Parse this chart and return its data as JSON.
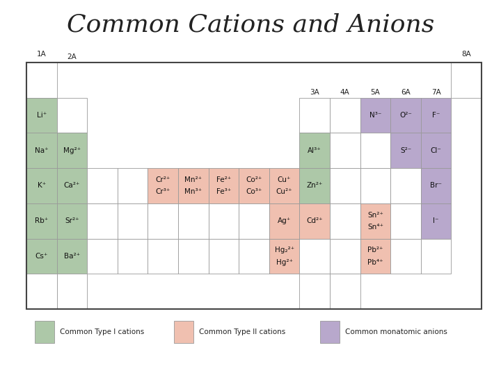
{
  "title": "Common Cations and Anions",
  "title_fontsize": 26,
  "bg_color": "#ffffff",
  "border_color": "#444444",
  "cell_edge_color": "#999999",
  "type1_color": "#adc8a8",
  "type2_color": "#f0c0b0",
  "anion_color": "#b8a8cc",
  "empty_color": "#ffffff",
  "legend": [
    {
      "label": "Common Type I cations",
      "color": "#adc8a8"
    },
    {
      "label": "Common Type II cations",
      "color": "#f0c0b0"
    },
    {
      "label": "Common monatomic anions",
      "color": "#b8a8cc"
    }
  ],
  "group_labels": [
    {
      "label": "1A",
      "col": 0,
      "row_above": -1
    },
    {
      "label": "2A",
      "col": 1,
      "row_above": 0
    },
    {
      "label": "3A",
      "col": 9,
      "row_above": 1
    },
    {
      "label": "4A",
      "col": 10,
      "row_above": 1
    },
    {
      "label": "5A",
      "col": 11,
      "row_above": 1
    },
    {
      "label": "6A",
      "col": 12,
      "row_above": 1
    },
    {
      "label": "7A",
      "col": 13,
      "row_above": 1
    },
    {
      "label": "8A",
      "col": 14,
      "row_above": -1
    }
  ],
  "cells": [
    {
      "row": 0,
      "col": 0,
      "color": "empty",
      "line1": "",
      "line2": ""
    },
    {
      "row": 0,
      "col": 14,
      "color": "empty",
      "line1": "",
      "line2": ""
    },
    {
      "row": 1,
      "col": 0,
      "color": "type1",
      "line1": "Li⁺",
      "line2": ""
    },
    {
      "row": 1,
      "col": 1,
      "color": "empty",
      "line1": "",
      "line2": ""
    },
    {
      "row": 1,
      "col": 9,
      "color": "empty",
      "line1": "",
      "line2": ""
    },
    {
      "row": 1,
      "col": 10,
      "color": "empty",
      "line1": "",
      "line2": ""
    },
    {
      "row": 1,
      "col": 11,
      "color": "anion",
      "line1": "N³⁻",
      "line2": ""
    },
    {
      "row": 1,
      "col": 12,
      "color": "anion",
      "line1": "O²⁻",
      "line2": ""
    },
    {
      "row": 1,
      "col": 13,
      "color": "anion",
      "line1": "F⁻",
      "line2": ""
    },
    {
      "row": 2,
      "col": 0,
      "color": "type1",
      "line1": "Na⁺",
      "line2": ""
    },
    {
      "row": 2,
      "col": 1,
      "color": "type1",
      "line1": "Mg²⁺",
      "line2": ""
    },
    {
      "row": 2,
      "col": 9,
      "color": "type1",
      "line1": "Al³⁺",
      "line2": ""
    },
    {
      "row": 2,
      "col": 10,
      "color": "empty",
      "line1": "",
      "line2": ""
    },
    {
      "row": 2,
      "col": 11,
      "color": "empty",
      "line1": "",
      "line2": ""
    },
    {
      "row": 2,
      "col": 12,
      "color": "anion",
      "line1": "S²⁻",
      "line2": ""
    },
    {
      "row": 2,
      "col": 13,
      "color": "anion",
      "line1": "Cl⁻",
      "line2": ""
    },
    {
      "row": 3,
      "col": 0,
      "color": "type1",
      "line1": "K⁺",
      "line2": ""
    },
    {
      "row": 3,
      "col": 1,
      "color": "type1",
      "line1": "Ca²⁺",
      "line2": ""
    },
    {
      "row": 3,
      "col": 2,
      "color": "empty",
      "line1": "",
      "line2": ""
    },
    {
      "row": 3,
      "col": 3,
      "color": "empty",
      "line1": "",
      "line2": ""
    },
    {
      "row": 3,
      "col": 4,
      "color": "type2",
      "line1": "Cr²⁺",
      "line2": "Cr³⁺"
    },
    {
      "row": 3,
      "col": 5,
      "color": "type2",
      "line1": "Mn²⁺",
      "line2": "Mn³⁺"
    },
    {
      "row": 3,
      "col": 6,
      "color": "type2",
      "line1": "Fe²⁺",
      "line2": "Fe³⁺"
    },
    {
      "row": 3,
      "col": 7,
      "color": "type2",
      "line1": "Co²⁺",
      "line2": "Co³⁺"
    },
    {
      "row": 3,
      "col": 8,
      "color": "type2",
      "line1": "Cu⁺",
      "line2": "Cu²⁺"
    },
    {
      "row": 3,
      "col": 9,
      "color": "type1",
      "line1": "Zn²⁺",
      "line2": ""
    },
    {
      "row": 3,
      "col": 10,
      "color": "empty",
      "line1": "",
      "line2": ""
    },
    {
      "row": 3,
      "col": 11,
      "color": "empty",
      "line1": "",
      "line2": ""
    },
    {
      "row": 3,
      "col": 12,
      "color": "empty",
      "line1": "",
      "line2": ""
    },
    {
      "row": 3,
      "col": 13,
      "color": "anion",
      "line1": "Br⁻",
      "line2": ""
    },
    {
      "row": 4,
      "col": 0,
      "color": "type1",
      "line1": "Rb⁺",
      "line2": ""
    },
    {
      "row": 4,
      "col": 1,
      "color": "type1",
      "line1": "Sr²⁺",
      "line2": ""
    },
    {
      "row": 4,
      "col": 2,
      "color": "empty",
      "line1": "",
      "line2": ""
    },
    {
      "row": 4,
      "col": 3,
      "color": "empty",
      "line1": "",
      "line2": ""
    },
    {
      "row": 4,
      "col": 4,
      "color": "empty",
      "line1": "",
      "line2": ""
    },
    {
      "row": 4,
      "col": 5,
      "color": "empty",
      "line1": "",
      "line2": ""
    },
    {
      "row": 4,
      "col": 6,
      "color": "empty",
      "line1": "",
      "line2": ""
    },
    {
      "row": 4,
      "col": 7,
      "color": "empty",
      "line1": "",
      "line2": ""
    },
    {
      "row": 4,
      "col": 8,
      "color": "type2",
      "line1": "Ag⁺",
      "line2": ""
    },
    {
      "row": 4,
      "col": 9,
      "color": "type2",
      "line1": "Cd²⁺",
      "line2": ""
    },
    {
      "row": 4,
      "col": 10,
      "color": "empty",
      "line1": "",
      "line2": ""
    },
    {
      "row": 4,
      "col": 11,
      "color": "type2",
      "line1": "Sn²⁺",
      "line2": "Sn⁴⁺"
    },
    {
      "row": 4,
      "col": 12,
      "color": "empty",
      "line1": "",
      "line2": ""
    },
    {
      "row": 4,
      "col": 13,
      "color": "anion",
      "line1": "I⁻",
      "line2": ""
    },
    {
      "row": 5,
      "col": 0,
      "color": "type1",
      "line1": "Cs⁺",
      "line2": ""
    },
    {
      "row": 5,
      "col": 1,
      "color": "type1",
      "line1": "Ba²⁺",
      "line2": ""
    },
    {
      "row": 5,
      "col": 2,
      "color": "empty",
      "line1": "",
      "line2": ""
    },
    {
      "row": 5,
      "col": 3,
      "color": "empty",
      "line1": "",
      "line2": ""
    },
    {
      "row": 5,
      "col": 4,
      "color": "empty",
      "line1": "",
      "line2": ""
    },
    {
      "row": 5,
      "col": 5,
      "color": "empty",
      "line1": "",
      "line2": ""
    },
    {
      "row": 5,
      "col": 6,
      "color": "empty",
      "line1": "",
      "line2": ""
    },
    {
      "row": 5,
      "col": 7,
      "color": "empty",
      "line1": "",
      "line2": ""
    },
    {
      "row": 5,
      "col": 8,
      "color": "type2",
      "line1": "Hg₂²⁺",
      "line2": "Hg²⁺"
    },
    {
      "row": 5,
      "col": 9,
      "color": "empty",
      "line1": "",
      "line2": ""
    },
    {
      "row": 5,
      "col": 10,
      "color": "empty",
      "line1": "",
      "line2": ""
    },
    {
      "row": 5,
      "col": 11,
      "color": "type2",
      "line1": "Pb²⁺",
      "line2": "Pb⁴⁺"
    },
    {
      "row": 5,
      "col": 12,
      "color": "empty",
      "line1": "",
      "line2": ""
    },
    {
      "row": 5,
      "col": 13,
      "color": "empty",
      "line1": "",
      "line2": ""
    },
    {
      "row": 6,
      "col": 0,
      "color": "empty",
      "line1": "",
      "line2": ""
    },
    {
      "row": 6,
      "col": 1,
      "color": "empty",
      "line1": "",
      "line2": ""
    },
    {
      "row": 6,
      "col": 9,
      "color": "empty",
      "line1": "",
      "line2": ""
    },
    {
      "row": 6,
      "col": 10,
      "color": "empty",
      "line1": "",
      "line2": ""
    }
  ]
}
